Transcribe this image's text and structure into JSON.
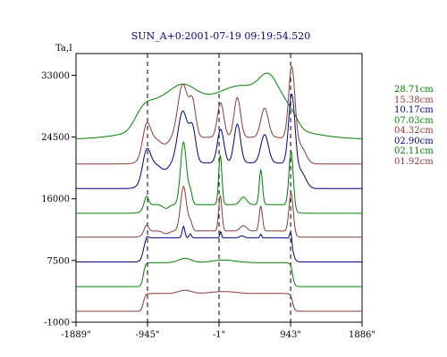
{
  "chart_data": {
    "type": "line",
    "title": "SUN_A+0:2001-07-19 09:19:54.520",
    "ylabel": "Ta,I",
    "xlim": [
      -1889,
      1886
    ],
    "ylim": [
      -1000,
      36000
    ],
    "grid": false,
    "legend_position": "right",
    "x_ticks": [
      {
        "value": -1889,
        "label": "-1889\""
      },
      {
        "value": -945,
        "label": "-945\""
      },
      {
        "value": -1,
        "label": "-1\""
      },
      {
        "value": 943,
        "label": "943\""
      },
      {
        "value": 1886,
        "label": "1886\""
      }
    ],
    "y_ticks": [
      {
        "value": 33000,
        "label": "33000"
      },
      {
        "value": 24500,
        "label": "24500"
      },
      {
        "value": 16000,
        "label": "16000"
      },
      {
        "value": 7500,
        "label": "7500"
      },
      {
        "value": -1000,
        "label": "-1000"
      }
    ],
    "vlines": [
      -945,
      -1,
      943
    ],
    "series": [
      {
        "name": "28.71cm",
        "color": "#008000",
        "baseline": 24200,
        "amp": 9100,
        "style": "smooth"
      },
      {
        "name": "15.38cm",
        "color": "#8b3a3a",
        "baseline": 20800,
        "amp": 13400,
        "style": "peaky"
      },
      {
        "name": "10.17cm",
        "color": "#000080",
        "baseline": 17400,
        "amp": 13000,
        "style": "peaky"
      },
      {
        "name": "07.03cm",
        "color": "#008000",
        "baseline": 14000,
        "amp": 9800,
        "style": "spiky"
      },
      {
        "name": "04.32cm",
        "color": "#8b3a3a",
        "baseline": 10700,
        "amp": 7000,
        "style": "spiky"
      },
      {
        "name": "02.90cm",
        "color": "#000080",
        "baseline": 7300,
        "amp": 4900,
        "style": "flat"
      },
      {
        "name": "02.11cm",
        "color": "#008000",
        "baseline": 3900,
        "amp": 3900,
        "style": "disk"
      },
      {
        "name": "01.92cm",
        "color": "#8b3a3a",
        "baseline": 500,
        "amp": 2900,
        "style": "disk"
      }
    ]
  }
}
